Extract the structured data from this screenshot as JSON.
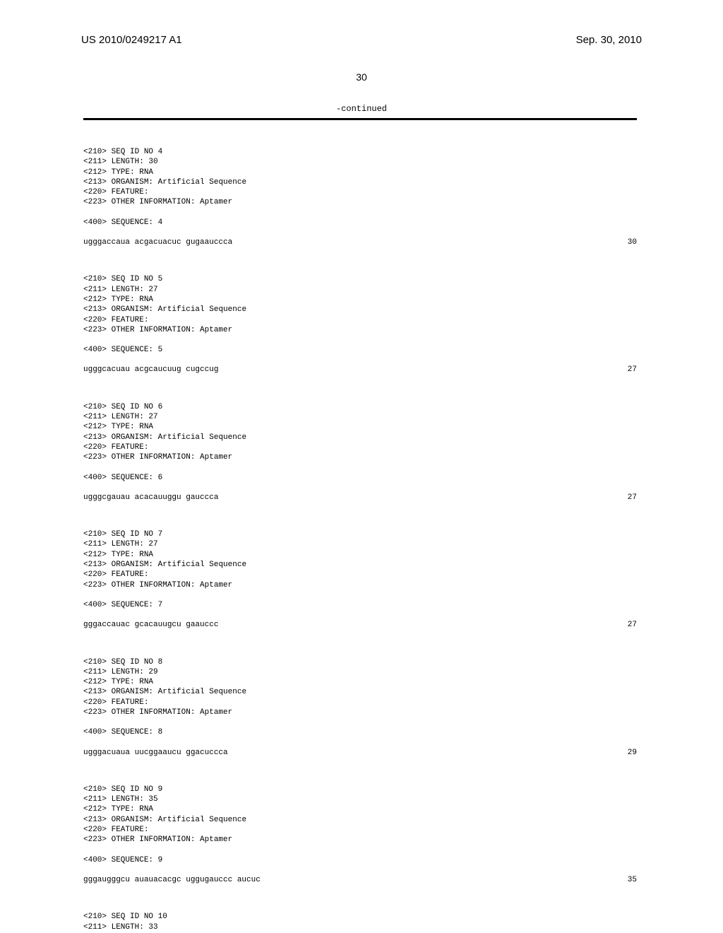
{
  "header": {
    "left": "US 2010/0249217 A1",
    "right": "Sep. 30, 2010"
  },
  "page_number": "30",
  "continued_label": "-continued",
  "sequences": [
    {
      "id": "4",
      "length": "30",
      "type": "RNA",
      "organism": "Artificial Sequence",
      "feature": "",
      "other_info": "Aptamer",
      "sequence_text": "ugggaccaua acgacuacuc gugaauccca",
      "sequence_index": "30"
    },
    {
      "id": "5",
      "length": "27",
      "type": "RNA",
      "organism": "Artificial Sequence",
      "feature": "",
      "other_info": "Aptamer",
      "sequence_text": "ugggcacuau acgcaucuug cugccug",
      "sequence_index": "27"
    },
    {
      "id": "6",
      "length": "27",
      "type": "RNA",
      "organism": "Artificial Sequence",
      "feature": "",
      "other_info": "Aptamer",
      "sequence_text": "ugggcgauau acacauuggu gauccca",
      "sequence_index": "27"
    },
    {
      "id": "7",
      "length": "27",
      "type": "RNA",
      "organism": "Artificial Sequence",
      "feature": "",
      "other_info": "Aptamer",
      "sequence_text": "gggaccauac gcacauugcu gaauccc",
      "sequence_index": "27"
    },
    {
      "id": "8",
      "length": "29",
      "type": "RNA",
      "organism": "Artificial Sequence",
      "feature": "",
      "other_info": "Aptamer",
      "sequence_text": "ugggacuaua uucggaaucu ggacuccca",
      "sequence_index": "29"
    },
    {
      "id": "9",
      "length": "35",
      "type": "RNA",
      "organism": "Artificial Sequence",
      "feature": "",
      "other_info": "Aptamer",
      "sequence_text": "gggaugggcu auauacacgc uggugauccc aucuc",
      "sequence_index": "35"
    }
  ],
  "partial_sequence": {
    "id": "10",
    "length": "33"
  },
  "labels": {
    "seq_id_prefix": "<210> SEQ ID NO ",
    "length_prefix": "<211> LENGTH: ",
    "type_prefix": "<212> TYPE: ",
    "organism_prefix": "<213> ORGANISM: ",
    "feature_prefix": "<220> FEATURE:",
    "other_info_prefix": "<223> OTHER INFORMATION: ",
    "sequence_prefix": "<400> SEQUENCE: "
  }
}
